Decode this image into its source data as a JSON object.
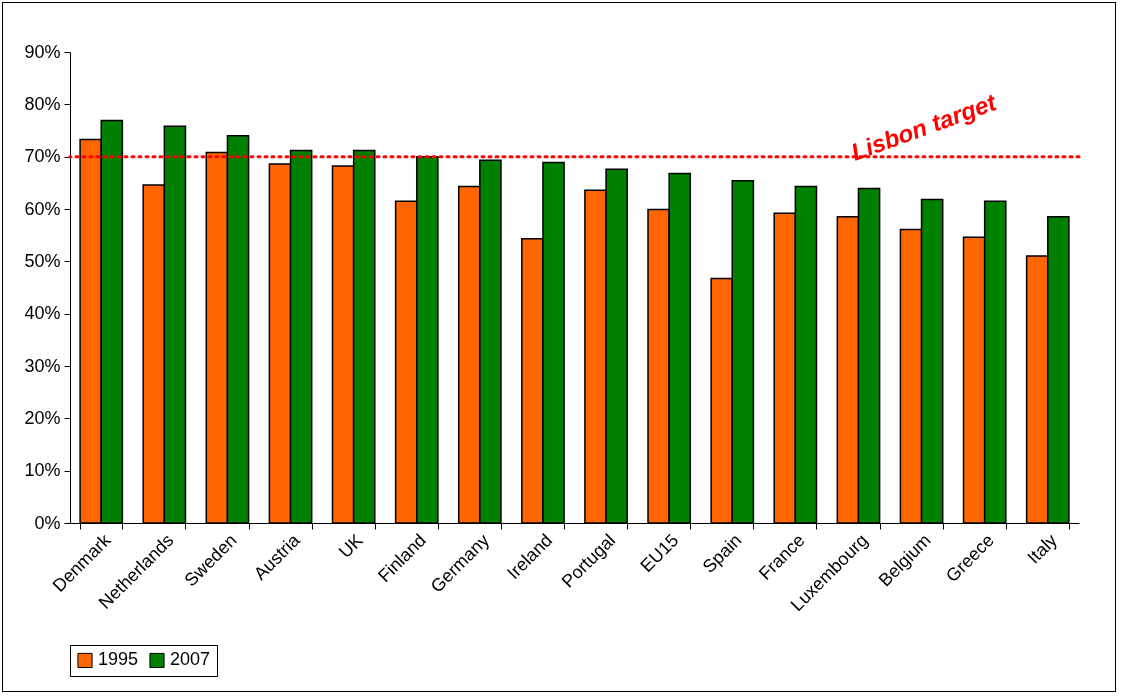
{
  "chart_data": {
    "type": "bar",
    "categories": [
      "Denmark",
      "Netherlands",
      "Sweden",
      "Austria",
      "UK",
      "Finland",
      "Germany",
      "Ireland",
      "Portugal",
      "EU15",
      "Spain",
      "France",
      "Luxembourg",
      "Belgium",
      "Greece",
      "Italy"
    ],
    "series": [
      {
        "name": "1995",
        "color": "#ff6600",
        "values": [
          73.3,
          64.6,
          70.8,
          68.6,
          68.2,
          61.5,
          64.3,
          54.3,
          63.6,
          59.9,
          46.7,
          59.2,
          58.5,
          56.1,
          54.6,
          51.0
        ]
      },
      {
        "name": "2007",
        "color": "#008000",
        "values": [
          76.9,
          75.8,
          74.0,
          71.2,
          71.2,
          70.0,
          69.3,
          68.9,
          67.6,
          66.8,
          65.4,
          64.3,
          63.9,
          61.8,
          61.5,
          58.5
        ]
      }
    ],
    "ylim": [
      0,
      90
    ],
    "yticks": [
      {
        "value": 0,
        "label": "0%"
      },
      {
        "value": 10,
        "label": "10%"
      },
      {
        "value": 20,
        "label": "20%"
      },
      {
        "value": 30,
        "label": "30%"
      },
      {
        "value": 40,
        "label": "40%"
      },
      {
        "value": 50,
        "label": "50%"
      },
      {
        "value": 60,
        "label": "60%"
      },
      {
        "value": 70,
        "label": "70%"
      },
      {
        "value": 80,
        "label": "80%"
      },
      {
        "value": 90,
        "label": "90%"
      }
    ],
    "ref_lines": [
      {
        "axis": "y",
        "value": 70,
        "label": "Lisbon target",
        "color": "#ff0000",
        "line_style": "dotted"
      }
    ],
    "grid": false,
    "legend": "bottom"
  }
}
